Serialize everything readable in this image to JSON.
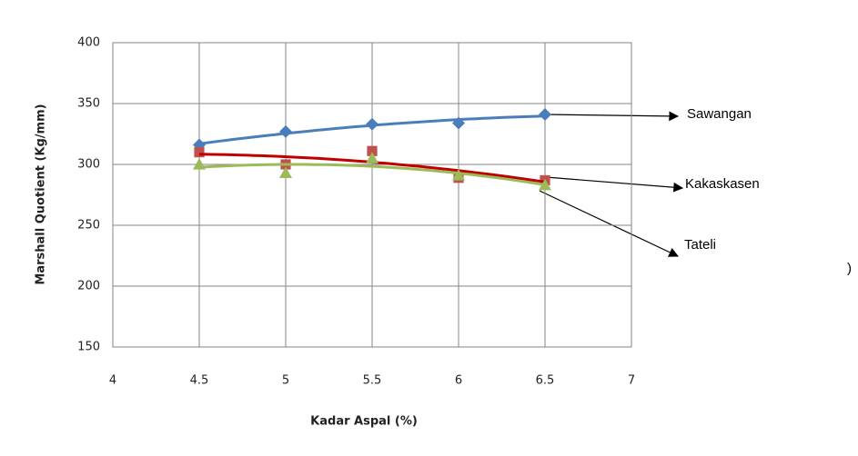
{
  "chart_data": {
    "type": "scatter",
    "x_label": "Kadar Aspal (%)",
    "y_label": "Marshall Quotient (Kg/mm)",
    "x": [
      4.5,
      5,
      5.5,
      6,
      6.5
    ],
    "series": [
      {
        "name": "Sawangan",
        "color": "#4a7ebb",
        "marker": "diamond",
        "values": [
          316,
          327,
          333,
          334,
          341
        ]
      },
      {
        "name": "Kakaskasen",
        "color": "#c0504d",
        "marker": "square",
        "values": [
          310,
          300,
          311,
          289,
          287
        ]
      },
      {
        "name": "Tateli",
        "color": "#9bbb59",
        "marker": "triangle",
        "values": [
          300,
          293,
          305,
          291,
          283
        ]
      }
    ],
    "trendline": {
      "type": "polynomial",
      "order": 2
    },
    "xlim": [
      4,
      7
    ],
    "xticks": [
      4,
      4.5,
      5,
      5.5,
      6,
      6.5,
      7
    ],
    "ylim": [
      150,
      400
    ],
    "yticks": [
      150,
      200,
      250,
      300,
      350,
      400
    ],
    "grid": true,
    "annotations": [
      ")"
    ]
  }
}
